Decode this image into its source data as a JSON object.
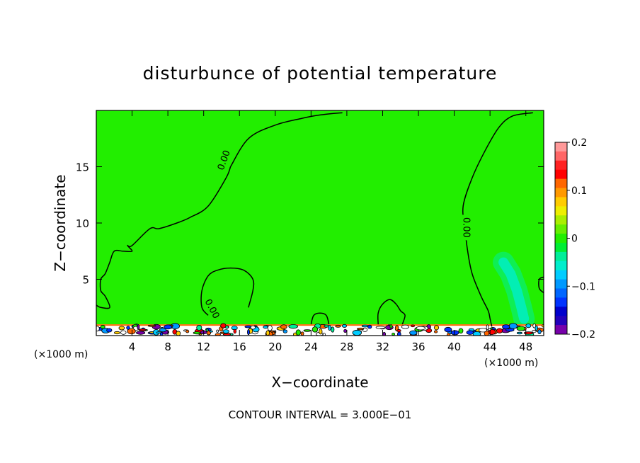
{
  "chart_data": {
    "type": "heatmap",
    "title": "disturbunce of potential temperature",
    "xlabel": "X−coordinate",
    "ylabel": "Z−coordinate",
    "x_unit_left": "(×1000 m)",
    "x_unit_right": "(×1000 m)",
    "xlim": [
      0,
      50
    ],
    "ylim": [
      0,
      20
    ],
    "xticks": [
      4,
      8,
      12,
      16,
      20,
      24,
      28,
      32,
      36,
      40,
      44,
      48
    ],
    "yticks": [
      5,
      10,
      15
    ],
    "contour_interval_text": "CONTOUR INTERVAL = 3.000E−01",
    "contour_label": "0.00",
    "background_value": 0.0,
    "background_color": "#22ee00",
    "colorbar": {
      "range": [
        -0.2,
        0.2
      ],
      "labels": [
        "0.2",
        "0.1",
        "0",
        "−0.1",
        "−0.2"
      ],
      "label_values": [
        0.2,
        0.1,
        0,
        -0.1,
        -0.2
      ],
      "colors": [
        "#ff9999",
        "#ff6666",
        "#ff2222",
        "#ff0000",
        "#ff6600",
        "#ff9900",
        "#ffcc00",
        "#eeee00",
        "#aaee00",
        "#66ee00",
        "#22ee00",
        "#00ee33",
        "#00ee99",
        "#00eecc",
        "#00ccff",
        "#0099ff",
        "#0066ff",
        "#0033ff",
        "#0000cc",
        "#2200bb",
        "#7700aa"
      ]
    },
    "zero_contours": [
      {
        "x": [
          15.0,
          14.5,
          12.5,
          10.5,
          9.0,
          7.0,
          6.0,
          4.0,
          3.5,
          4.0,
          3.0,
          2.0,
          1.5,
          1.0,
          0.5,
          0.5,
          1.0,
          1.5,
          0.5,
          0.0
        ],
        "y": [
          15.0,
          14.0,
          11.5,
          10.5,
          10.0,
          9.5,
          9.5,
          8.0,
          8.0,
          7.5,
          7.5,
          7.5,
          6.5,
          5.5,
          5.0,
          4.0,
          3.5,
          2.5,
          2.5,
          2.7
        ]
      },
      {
        "x": [
          15.0,
          17.0,
          20.0,
          23.0,
          25.0,
          27.5
        ],
        "y": [
          15.0,
          17.5,
          18.7,
          19.3,
          19.6,
          19.8
        ]
      },
      {
        "x": [
          12.5,
          11.8,
          11.8,
          12.5,
          13.5,
          15.0,
          16.5,
          17.5,
          17.5,
          17.0
        ],
        "y": [
          1.8,
          2.5,
          4.0,
          5.3,
          5.8,
          6.0,
          5.8,
          5.0,
          4.0,
          2.5
        ]
      },
      {
        "x": [
          48.8,
          46.5,
          45.0,
          43.5,
          42.0,
          41.0,
          41.2,
          41.5,
          42.0,
          43.0,
          43.8,
          44.0,
          44.2
        ],
        "y": [
          19.8,
          19.5,
          18.5,
          16.5,
          14.0,
          11.5,
          9.5,
          7.5,
          5.5,
          3.5,
          2.2,
          1.5,
          0.8
        ]
      },
      {
        "x": [
          31.5,
          31.5,
          32.0,
          32.8,
          33.5,
          34.0,
          34.5,
          34.2
        ],
        "y": [
          1.0,
          2.0,
          2.8,
          3.2,
          2.8,
          2.2,
          1.8,
          1.0
        ]
      },
      {
        "x": [
          24.0,
          24.3,
          25.0,
          25.7,
          26.0
        ],
        "y": [
          1.0,
          1.8,
          2.0,
          1.8,
          1.0
        ]
      },
      {
        "x": [
          50.0,
          49.5,
          49.5,
          50.0
        ],
        "y": [
          5.2,
          5.0,
          4.2,
          3.8
        ]
      }
    ],
    "cool_plume": {
      "x": [
        45.5,
        46.3,
        47.0,
        47.5,
        47.8
      ],
      "y": [
        6.5,
        5.5,
        4.0,
        2.5,
        1.5
      ],
      "min_value": -0.06
    }
  }
}
